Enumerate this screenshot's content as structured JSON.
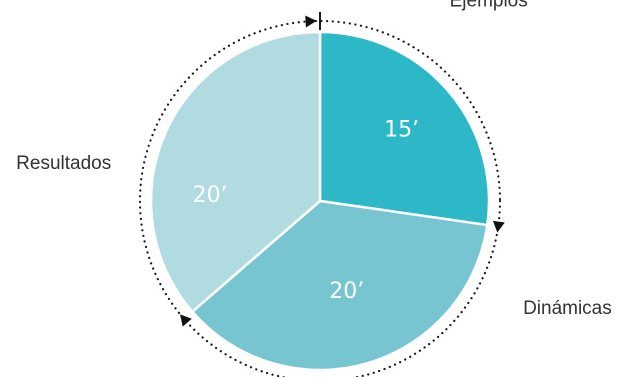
{
  "chart_data": {
    "type": "pie",
    "title": "",
    "slices": [
      {
        "label": "Ejemplos",
        "value": 15,
        "value_label": "15’",
        "color": "#2cb8c6"
      },
      {
        "label": "Dinámicas",
        "value": 20,
        "value_label": "20’",
        "color": "#77c5d0"
      },
      {
        "label": "Resultados",
        "value": 20,
        "value_label": "20’",
        "color": "#b0dbe1"
      }
    ],
    "start_angle_deg": 0,
    "direction": "clockwise",
    "dotted_ring": true,
    "legend": "none"
  }
}
